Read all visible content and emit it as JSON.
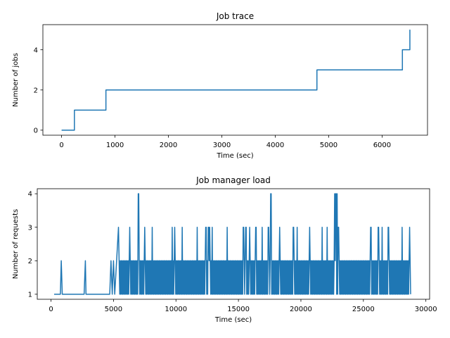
{
  "chart_data": [
    {
      "type": "line",
      "title": "Job trace",
      "xlabel": "Time (sec)",
      "ylabel": "Number of jobs",
      "xlim": [
        -350,
        6850
      ],
      "ylim": [
        -0.25,
        5.25
      ],
      "xticks": [
        0,
        1000,
        2000,
        3000,
        4000,
        5000,
        6000
      ],
      "yticks": [
        0,
        2,
        4
      ],
      "color": "#1f77b4",
      "grid": false,
      "series": [
        {
          "step": true,
          "x": [
            0,
            240,
            240,
            830,
            830,
            4780,
            4780,
            6380,
            6380,
            6520,
            6520
          ],
          "y": [
            0,
            0,
            1,
            1,
            2,
            2,
            3,
            3,
            4,
            4,
            5
          ]
        }
      ]
    },
    {
      "type": "line",
      "title": "Job manager load",
      "xlabel": "Time (sec)",
      "ylabel": "Number of requests",
      "xlim": [
        -1100,
        30300
      ],
      "ylim": [
        0.85,
        4.15
      ],
      "xticks": [
        0,
        5000,
        10000,
        15000,
        20000,
        25000,
        30000
      ],
      "yticks": [
        1,
        2,
        3,
        4
      ],
      "color": "#1f77b4",
      "grid": false,
      "series": [
        {
          "x": [
            250,
            650,
            750,
            820,
            900,
            1400,
            2000,
            2650,
            2750,
            2800,
            2900,
            3600,
            4300,
            4700,
            4800,
            4900,
            5000,
            5100,
            5250,
            5400,
            5500
          ],
          "y": [
            1,
            1,
            1,
            2,
            1,
            1,
            1,
            1,
            2,
            1,
            1,
            1,
            1,
            1,
            2,
            1,
            2,
            1,
            2,
            3,
            1
          ],
          "dense_start": 5500,
          "dense_end": 28800,
          "dense_step": 40,
          "base": 1,
          "peaks2": [
            5800,
            6100,
            6500,
            7200,
            7700,
            8900,
            9400,
            10300,
            10800,
            11600,
            12100,
            13000,
            13500,
            14400,
            15000,
            16000,
            16600,
            17100,
            18000,
            18700,
            19200,
            19800,
            20500,
            21000,
            21600,
            22400,
            23300,
            24200,
            24800,
            25300,
            26300,
            27200,
            27800,
            28400
          ],
          "peaks3": [
            6300,
            7500,
            8100,
            9700,
            9900,
            10500,
            11700,
            12400,
            12600,
            12700,
            12900,
            14100,
            15400,
            15600,
            15900,
            16400,
            16900,
            17400,
            18300,
            19400,
            19700,
            20700,
            21700,
            22100,
            23000,
            25600,
            26200,
            26500,
            27000,
            28100,
            28700
          ],
          "peaks4": [
            7000,
            17600,
            22700,
            22800,
            22900
          ]
        }
      ]
    }
  ]
}
